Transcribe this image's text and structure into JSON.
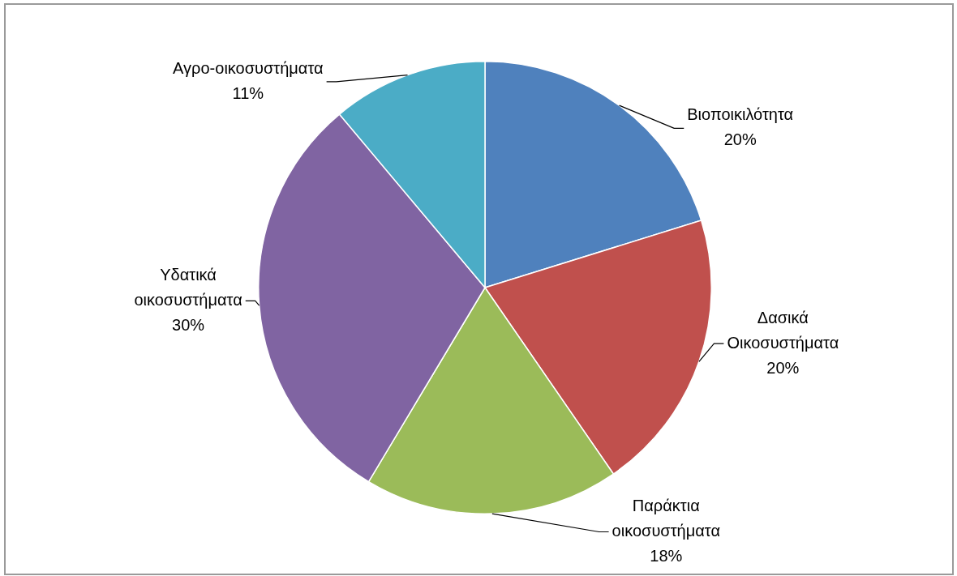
{
  "chart_data": {
    "type": "pie",
    "categories": [
      "Βιοποικιλότητα",
      "Δασικά Οικοσυστήματα",
      "Παράκτια οικοσυστήματα",
      "Υδατικά οικοσυστήματα",
      "Αγρο-οικοσυστήματα"
    ],
    "values": [
      20,
      20,
      18,
      30,
      11
    ],
    "colors": [
      "#4f81bd",
      "#c0504d",
      "#9bbb59",
      "#8064a2",
      "#4bacc6"
    ],
    "value_labels": [
      "20%",
      "20%",
      "18%",
      "30%",
      "11%"
    ]
  }
}
